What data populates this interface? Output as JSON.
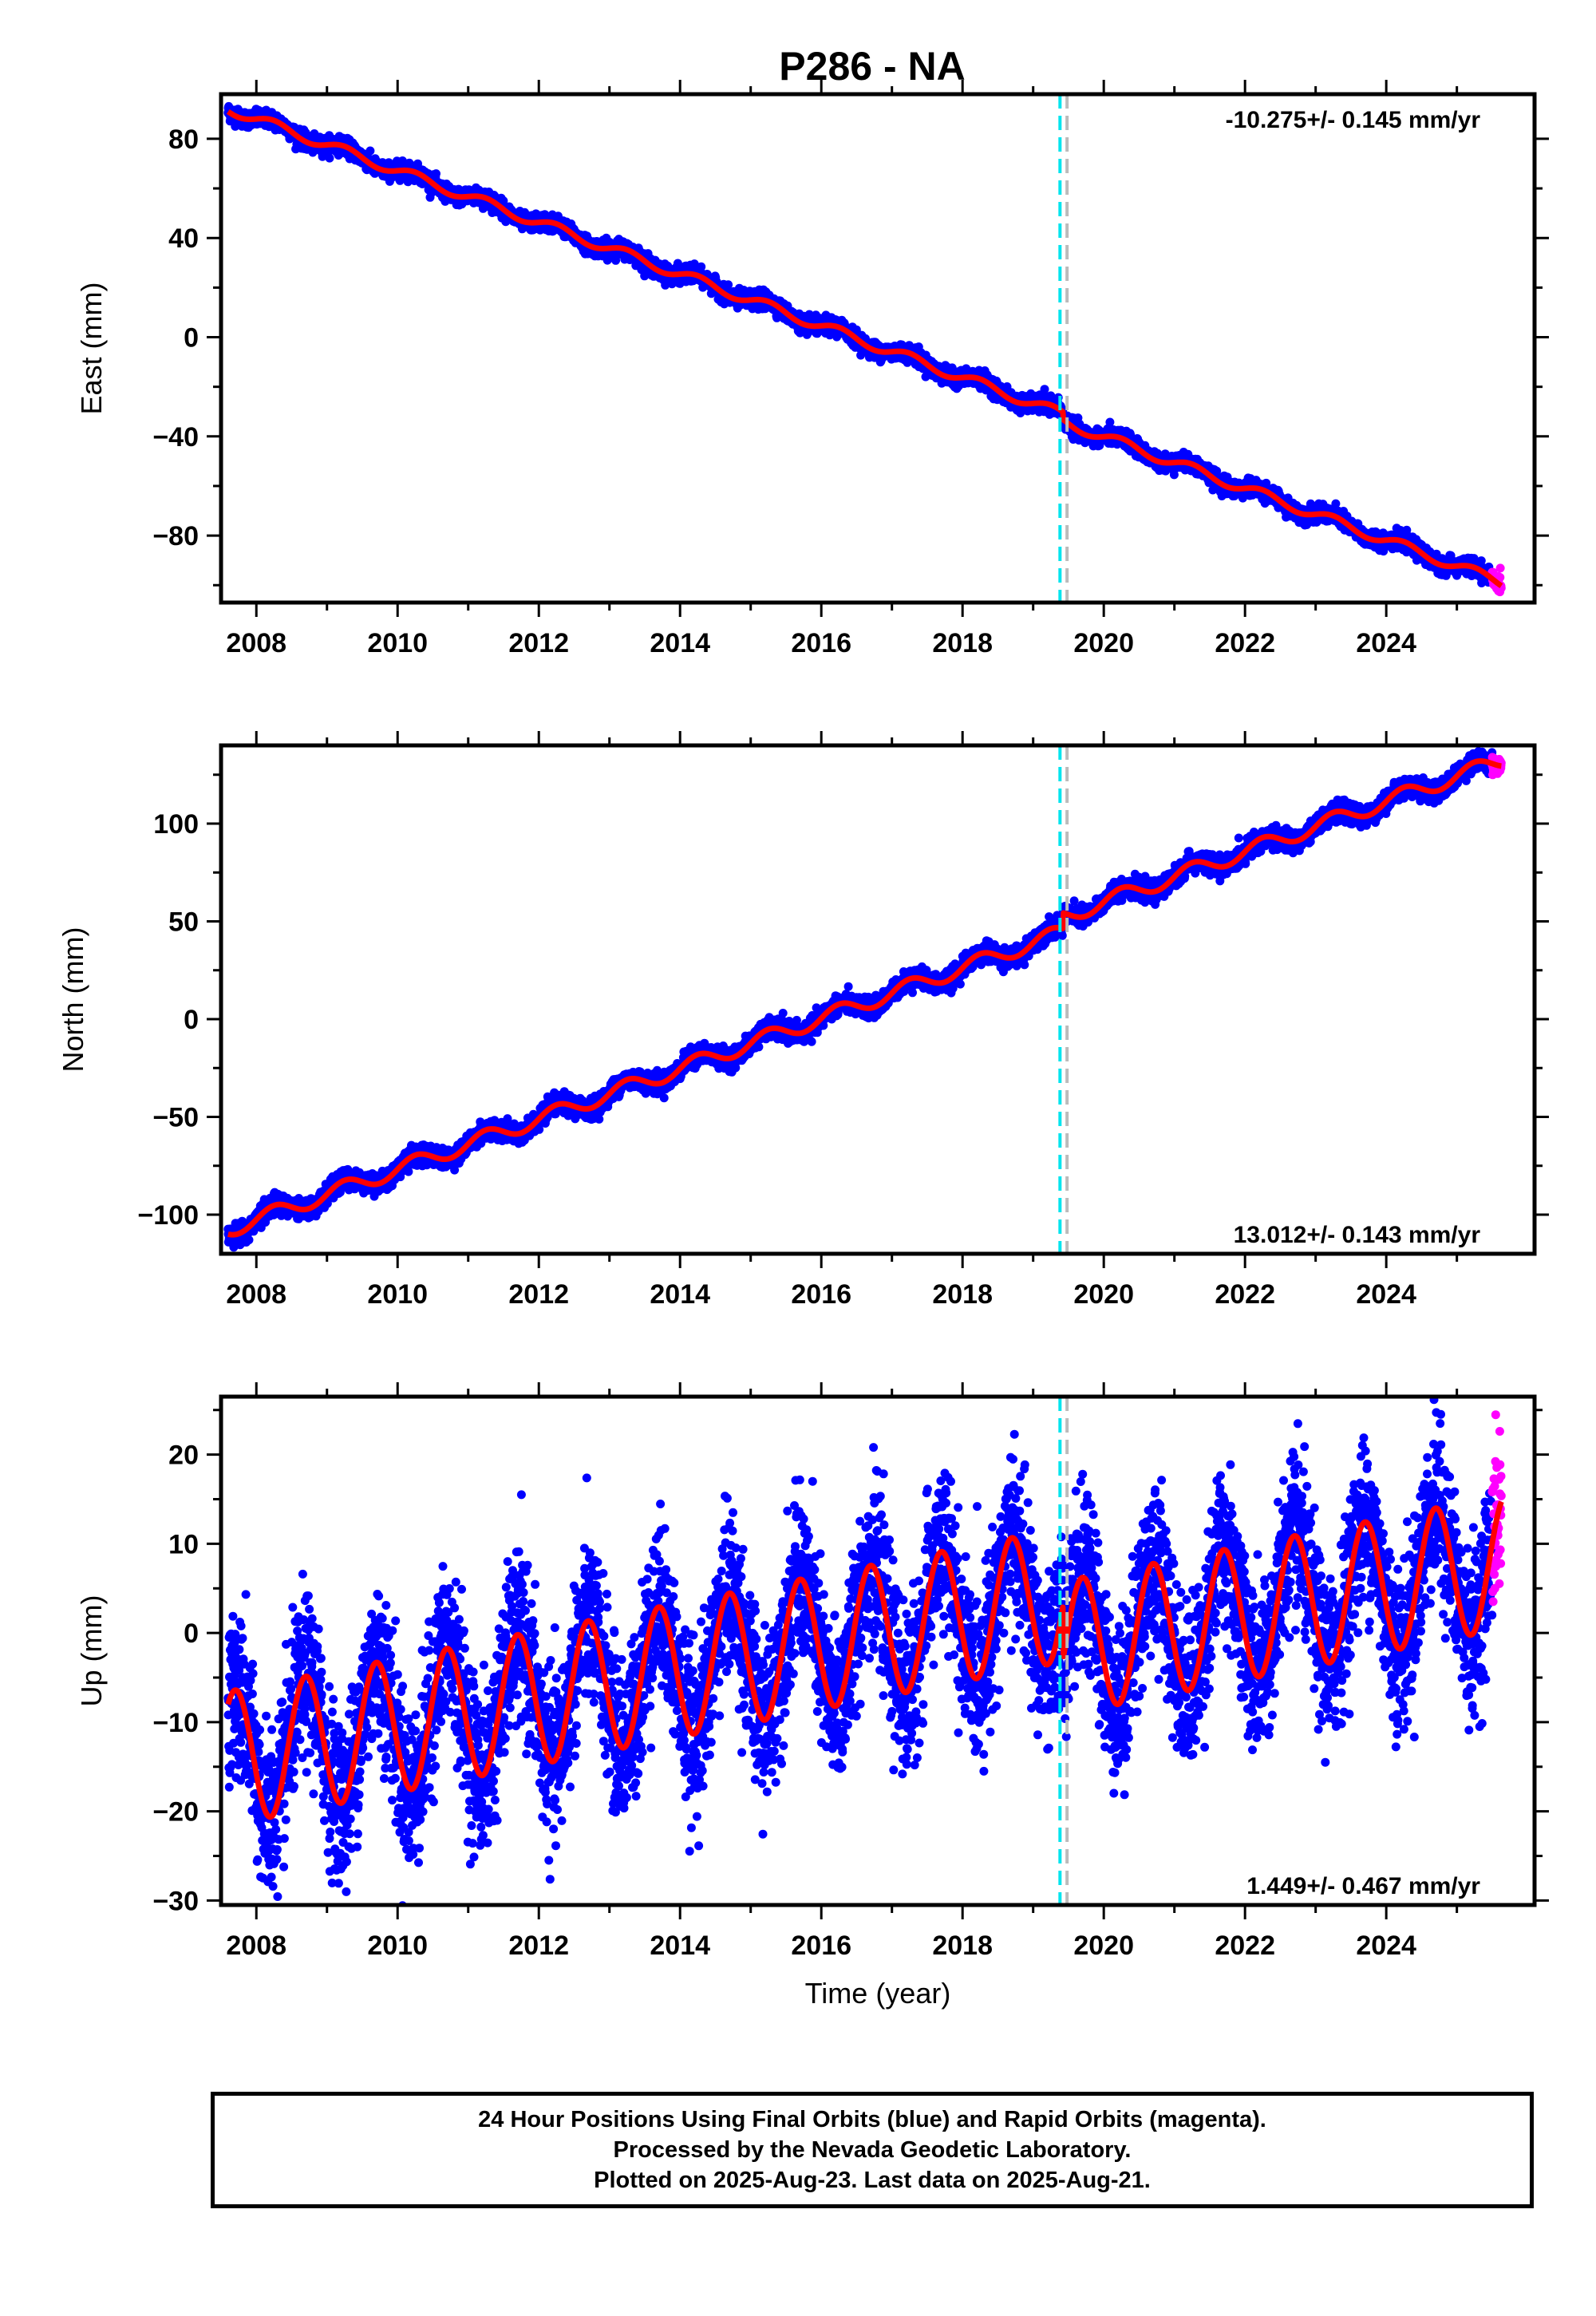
{
  "title": "P286 - NA",
  "caption": {
    "lines": [
      "24 Hour Positions Using Final Orbits (blue) and Rapid Orbits (magenta).",
      "Processed by the Nevada Geodetic Laboratory.",
      "Plotted on 2025-Aug-23. Last data on 2025-Aug-21."
    ]
  },
  "colors": {
    "final_orbits": "#0000ff",
    "rapid_orbits": "#ff00ff",
    "model_fit": "#ff0000",
    "event_line_cyan": "#00e5ee",
    "event_line_gray": "#bbbbbb"
  },
  "chart_data": [
    {
      "type": "scatter",
      "component": "east",
      "ylabel": "East (mm)",
      "xlabel": "",
      "xlim": [
        2007.5,
        2026.1
      ],
      "ylim": [
        -107,
        98
      ],
      "xticks": [
        2008,
        2010,
        2012,
        2014,
        2016,
        2018,
        2020,
        2022,
        2024
      ],
      "yticks": [
        -80,
        -40,
        0,
        40,
        80
      ],
      "rate_label": "-10.275+/- 0.145 mm/yr",
      "rate_label_position": "top-right",
      "rate_mm_per_yr": -10.275,
      "start": [
        2007.6,
        91
      ],
      "end": [
        2025.63,
        -100
      ],
      "step_offsets": [
        [
          2019.42,
          -3
        ]
      ],
      "seasonal_amplitude": 2,
      "noise": 1.6,
      "event_lines": [
        2019.38,
        2019.48
      ],
      "series": [
        {
          "role": "final",
          "x_range": [
            2007.6,
            2025.5
          ]
        },
        {
          "role": "rapid",
          "x_range": [
            2025.5,
            2025.63
          ]
        },
        {
          "role": "fit"
        }
      ]
    },
    {
      "type": "scatter",
      "component": "north",
      "ylabel": "North (mm)",
      "xlabel": "",
      "xlim": [
        2007.5,
        2026.1
      ],
      "ylim": [
        -120,
        140
      ],
      "xticks": [
        2008,
        2010,
        2012,
        2014,
        2016,
        2018,
        2020,
        2022,
        2024
      ],
      "yticks": [
        -100,
        -50,
        0,
        50,
        100
      ],
      "rate_label": "13.012+/- 0.143 mm/yr",
      "rate_label_position": "bottom-right",
      "rate_mm_per_yr": 13.012,
      "start": [
        2007.6,
        -110
      ],
      "end": [
        2025.63,
        130
      ],
      "step_offsets": [
        [
          2019.42,
          8
        ]
      ],
      "seasonal_amplitude": 4,
      "noise": 2.4,
      "event_lines": [
        2019.38,
        2019.48
      ],
      "series": [
        {
          "role": "final",
          "x_range": [
            2007.6,
            2025.5
          ]
        },
        {
          "role": "rapid",
          "x_range": [
            2025.5,
            2025.63
          ]
        },
        {
          "role": "fit"
        }
      ]
    },
    {
      "type": "scatter",
      "component": "up",
      "ylabel": "Up (mm)",
      "xlabel": "Time (year)",
      "xlim": [
        2007.5,
        2026.1
      ],
      "ylim": [
        -30.5,
        26.5
      ],
      "xticks": [
        2008,
        2010,
        2012,
        2014,
        2016,
        2018,
        2020,
        2022,
        2024
      ],
      "yticks": [
        -30,
        -20,
        -10,
        0,
        10,
        20
      ],
      "rate_label": "1.449+/- 0.467 mm/yr",
      "rate_label_position": "bottom-right",
      "rate_mm_per_yr": 1.449,
      "start": [
        2007.6,
        -8
      ],
      "end": [
        2025.63,
        14
      ],
      "step_offsets": [
        [
          2019.42,
          -6
        ]
      ],
      "seasonal_amplitude": 7.5,
      "seasonal_peak_phase": 0.7,
      "noise": 4.5,
      "event_lines": [
        2019.38,
        2019.48
      ],
      "series": [
        {
          "role": "final",
          "x_range": [
            2007.6,
            2025.5
          ]
        },
        {
          "role": "rapid",
          "x_range": [
            2025.5,
            2025.63
          ]
        },
        {
          "role": "fit"
        }
      ]
    }
  ]
}
